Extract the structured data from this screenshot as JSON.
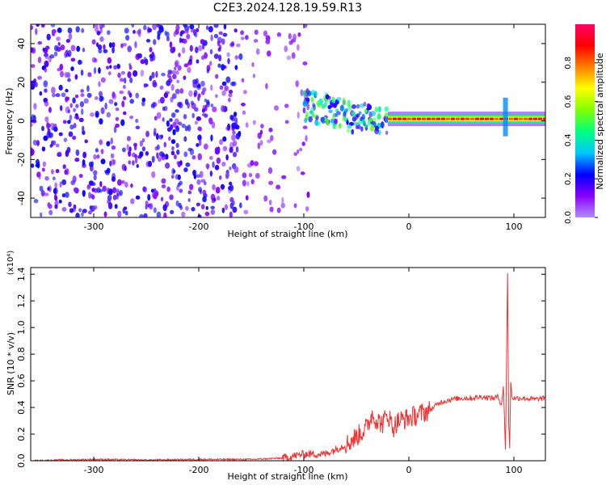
{
  "chart_data": [
    {
      "type": "heatmap",
      "title": "C2E3.2024.128.19.59.R13",
      "xlabel": "Height of straight line (km)",
      "ylabel": "Frequency (Hz)",
      "xlim": [
        -360,
        130
      ],
      "ylim": [
        -50,
        50
      ],
      "x_ticks": [
        -300,
        -200,
        -100,
        0,
        100
      ],
      "x_tick_labels": [
        "-300",
        "-200",
        "-100",
        "0",
        "100"
      ],
      "y_ticks": [
        -40,
        -20,
        0,
        20,
        40
      ],
      "y_tick_labels": [
        "-40",
        "-20",
        "0",
        "20",
        "40"
      ],
      "colorbar": {
        "label": "Normalized spectral amplitude",
        "range": [
          0,
          1
        ],
        "ticks": [
          0.0,
          0.2,
          0.4,
          0.6,
          0.8
        ],
        "tick_labels": [
          "0.0",
          "0.2",
          "0.4",
          "0.6",
          "0.8"
        ],
        "colormap": [
          "#b28cff",
          "#8800ff",
          "#0000ff",
          "#00c8ff",
          "#00ff80",
          "#80ff00",
          "#ffff00",
          "#ff8000",
          "#ff0000",
          "#ff0066"
        ]
      },
      "regions": [
        {
          "x_range": [
            -360,
            -160
          ],
          "y_range": [
            -50,
            50
          ],
          "amplitude": 0.15,
          "description_level": "dense noise"
        },
        {
          "x_range": [
            -160,
            -95
          ],
          "y_range": [
            -50,
            50
          ],
          "amplitude": 0.07,
          "description_level": "sparse noise"
        },
        {
          "x_range": [
            -100,
            -20
          ],
          "y_range": [
            -10,
            18
          ],
          "amplitude": 0.3,
          "description_level": "signal cluster"
        },
        {
          "x_range": [
            -20,
            130
          ],
          "y_range": [
            -1,
            3
          ],
          "amplitude": 0.9,
          "description_level": "stable signal"
        }
      ],
      "grid": false
    },
    {
      "type": "line",
      "xlabel": "Height of straight line (km)",
      "ylabel": "SNR (10 * v/v)",
      "y_multiplier_label": "(x10⁴)",
      "xlim": [
        -360,
        130
      ],
      "ylim": [
        0,
        1.45
      ],
      "x_ticks": [
        -300,
        -200,
        -100,
        0,
        100
      ],
      "x_tick_labels": [
        "-300",
        "-200",
        "-100",
        "0",
        "100"
      ],
      "y_ticks": [
        0.0,
        0.2,
        0.4,
        0.6,
        0.8,
        1.0,
        1.2,
        1.4
      ],
      "y_tick_labels": [
        "0.0",
        "0.2",
        "0.4",
        "0.6",
        "0.8",
        "1.0",
        "1.2",
        "1.4"
      ],
      "series": [
        {
          "color": "#ee3333",
          "x": [
            -360,
            -300,
            -250,
            -200,
            -150,
            -120,
            -100,
            -80,
            -60,
            -50,
            -40,
            -35,
            -30,
            -25,
            -20,
            -15,
            -10,
            0,
            10,
            20,
            30,
            40,
            50,
            60,
            70,
            80,
            85,
            88,
            90,
            92,
            94,
            95,
            96,
            97,
            98,
            100,
            105,
            110,
            120,
            130
          ],
          "y": [
            0.0,
            0.01,
            0.005,
            0.01,
            0.01,
            0.02,
            0.05,
            0.05,
            0.12,
            0.18,
            0.25,
            0.35,
            0.3,
            0.28,
            0.35,
            0.25,
            0.3,
            0.32,
            0.35,
            0.38,
            0.44,
            0.46,
            0.47,
            0.47,
            0.48,
            0.47,
            0.48,
            0.42,
            0.55,
            0.1,
            1.4,
            0.3,
            0.08,
            0.6,
            0.48,
            0.47,
            0.47,
            0.47,
            0.46,
            0.47
          ]
        }
      ],
      "grid": false
    }
  ]
}
